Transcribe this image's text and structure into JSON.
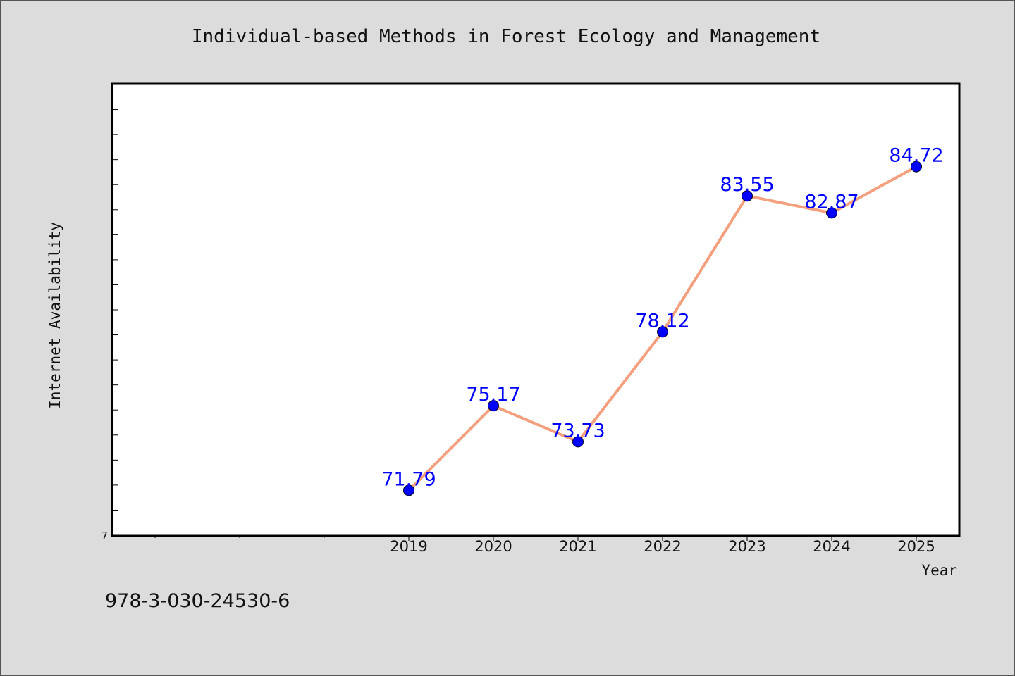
{
  "chart_data": {
    "type": "line",
    "title": "Individual-based Methods in Forest Ecology and Management",
    "xlabel": "Year",
    "ylabel": "Internet Availability",
    "categories": [
      "2019",
      "2020",
      "2021",
      "2022",
      "2023",
      "2024",
      "2025"
    ],
    "x": [
      2019,
      2020,
      2021,
      2022,
      2023,
      2024,
      2025
    ],
    "values": [
      71.79,
      75.17,
      73.73,
      78.12,
      83.55,
      82.87,
      84.72
    ],
    "value_labels": [
      "71.79",
      "75.17",
      "73.73",
      "78.12",
      "83.55",
      "82.87",
      "84.72"
    ],
    "xlim": [
      2015.5,
      2025.5
    ],
    "ylim": [
      70.0,
      88.0
    ],
    "y_tick_label": "7",
    "grid": false,
    "legend": "none",
    "colors": {
      "line": "#f4a07f",
      "marker": "#0000ff",
      "label": "#0000ff",
      "background": "#dcdcdc",
      "plot_background": "#ffffff"
    }
  },
  "footer": {
    "isbn": "978-3-030-24530-6"
  }
}
